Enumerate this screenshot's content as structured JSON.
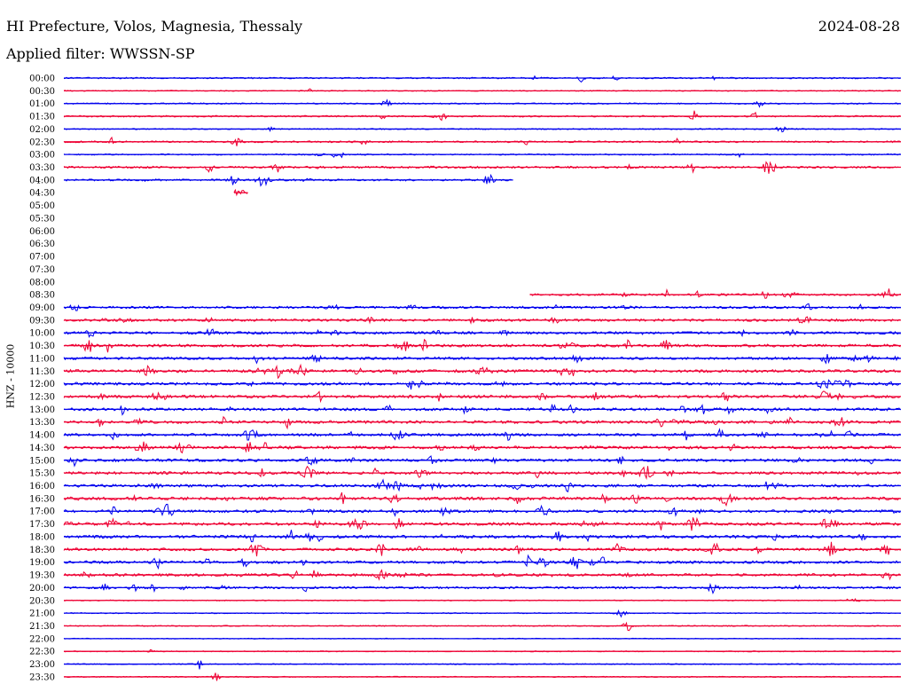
{
  "header": {
    "station": "HI Prefecture, Volos, Magnesia, Thessaly",
    "date": "2024-08-28",
    "filter_label": "Applied filter:",
    "filter_value": "WWSSN-SP"
  },
  "axis": {
    "y_label": "HNZ - 10000"
  },
  "colors": {
    "even_trace": "#0000ee",
    "odd_trace": "#ee0033",
    "background": "#ffffff"
  },
  "chart_data": {
    "type": "line",
    "description_free": true,
    "ylabel": "HNZ - 10000",
    "x_unit": "minutes within row (0-30)",
    "rows": [
      {
        "label": "00:00",
        "start": 0,
        "end": 30,
        "activity": 0.25
      },
      {
        "label": "00:30",
        "start": 0,
        "end": 30,
        "activity": 0.1
      },
      {
        "label": "01:00",
        "start": 0,
        "end": 30,
        "activity": 0.2
      },
      {
        "label": "01:30",
        "start": 0,
        "end": 30,
        "activity": 0.3
      },
      {
        "label": "02:00",
        "start": 0,
        "end": 30,
        "activity": 0.15
      },
      {
        "label": "02:30",
        "start": 0,
        "end": 30,
        "activity": 0.35
      },
      {
        "label": "03:00",
        "start": 0,
        "end": 30,
        "activity": 0.2
      },
      {
        "label": "03:30",
        "start": 0,
        "end": 30,
        "activity": 0.45
      },
      {
        "label": "04:00",
        "start": 0,
        "end": 16.1,
        "activity": 0.4
      },
      {
        "label": "04:30",
        "start": 6.1,
        "end": 6.6,
        "activity": 0.3
      },
      {
        "label": "05:00",
        "start": null,
        "end": null,
        "activity": 0
      },
      {
        "label": "05:30",
        "start": null,
        "end": null,
        "activity": 0
      },
      {
        "label": "06:00",
        "start": null,
        "end": null,
        "activity": 0
      },
      {
        "label": "06:30",
        "start": null,
        "end": null,
        "activity": 0
      },
      {
        "label": "07:00",
        "start": null,
        "end": null,
        "activity": 0
      },
      {
        "label": "07:30",
        "start": null,
        "end": null,
        "activity": 0
      },
      {
        "label": "08:00",
        "start": null,
        "end": null,
        "activity": 0
      },
      {
        "label": "08:30",
        "start": 16.7,
        "end": 30,
        "activity": 0.45
      },
      {
        "label": "09:00",
        "start": 0,
        "end": 30,
        "activity": 0.55
      },
      {
        "label": "09:30",
        "start": 0,
        "end": 30,
        "activity": 0.6
      },
      {
        "label": "10:00",
        "start": 0,
        "end": 30,
        "activity": 0.65
      },
      {
        "label": "10:30",
        "start": 0,
        "end": 30,
        "activity": 0.7
      },
      {
        "label": "11:00",
        "start": 0,
        "end": 30,
        "activity": 0.65
      },
      {
        "label": "11:30",
        "start": 0,
        "end": 30,
        "activity": 0.75
      },
      {
        "label": "12:00",
        "start": 0,
        "end": 30,
        "activity": 0.7
      },
      {
        "label": "12:30",
        "start": 0,
        "end": 30,
        "activity": 0.75
      },
      {
        "label": "13:00",
        "start": 0,
        "end": 30,
        "activity": 0.7
      },
      {
        "label": "13:30",
        "start": 0,
        "end": 30,
        "activity": 0.75
      },
      {
        "label": "14:00",
        "start": 0,
        "end": 30,
        "activity": 0.7
      },
      {
        "label": "14:30",
        "start": 0,
        "end": 30,
        "activity": 0.75
      },
      {
        "label": "15:00",
        "start": 0,
        "end": 30,
        "activity": 0.7
      },
      {
        "label": "15:30",
        "start": 0,
        "end": 30,
        "activity": 0.7
      },
      {
        "label": "16:00",
        "start": 0,
        "end": 30,
        "activity": 0.7
      },
      {
        "label": "16:30",
        "start": 0,
        "end": 30,
        "activity": 0.8
      },
      {
        "label": "17:00",
        "start": 0,
        "end": 30,
        "activity": 0.7
      },
      {
        "label": "17:30",
        "start": 0,
        "end": 30,
        "activity": 0.75
      },
      {
        "label": "18:00",
        "start": 0,
        "end": 30,
        "activity": 0.75
      },
      {
        "label": "18:30",
        "start": 0,
        "end": 30,
        "activity": 0.7
      },
      {
        "label": "19:00",
        "start": 0,
        "end": 30,
        "activity": 0.7
      },
      {
        "label": "19:30",
        "start": 0,
        "end": 30,
        "activity": 0.65
      },
      {
        "label": "20:00",
        "start": 0,
        "end": 30,
        "activity": 0.5
      },
      {
        "label": "20:30",
        "start": 0,
        "end": 30,
        "activity": 0.1
      },
      {
        "label": "21:00",
        "start": 0,
        "end": 30,
        "activity": 0.1
      },
      {
        "label": "21:30",
        "start": 0,
        "end": 30,
        "activity": 0.1
      },
      {
        "label": "22:00",
        "start": 0,
        "end": 30,
        "activity": 0.05
      },
      {
        "label": "22:30",
        "start": 0,
        "end": 30,
        "activity": 0.1
      },
      {
        "label": "23:00",
        "start": 0,
        "end": 30,
        "activity": 0.1
      },
      {
        "label": "23:30",
        "start": 0,
        "end": 30,
        "activity": 0.1
      }
    ]
  }
}
